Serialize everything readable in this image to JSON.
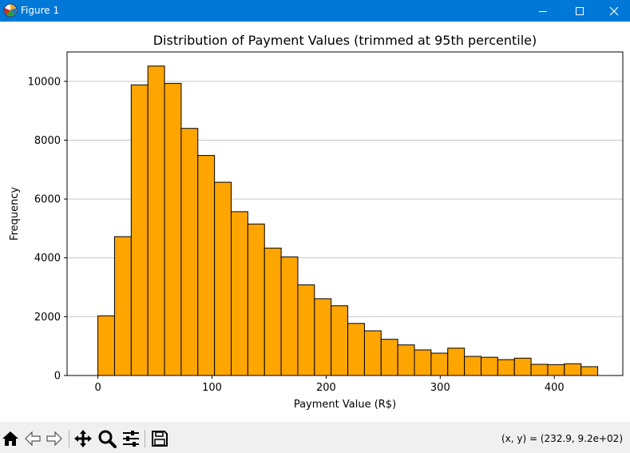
{
  "window": {
    "title": "Figure 1",
    "icon": "matplotlib-logo-icon",
    "controls": [
      "minimize-icon",
      "maximize-icon",
      "close-icon"
    ]
  },
  "toolbar": {
    "tools": [
      "home-icon",
      "back-arrow-icon",
      "forward-arrow-icon",
      "pan-icon",
      "zoom-icon",
      "configure-subplots-icon",
      "save-icon"
    ],
    "coords_text": "(x, y) = (232.9, 9.2e+02)"
  },
  "colors": {
    "bar_fill": "#ffa500",
    "bar_edge": "#000000",
    "grid": "#c8c8c8",
    "titlebar": "#0078d7"
  },
  "chart_data": {
    "type": "bar",
    "title": "Distribution of Payment Values (trimmed at 95th percentile)",
    "xlabel": "Payment Value (R$)",
    "ylabel": "Frequency",
    "xlim": [
      -27,
      460
    ],
    "ylim": [
      0,
      11000
    ],
    "xticks": [
      0,
      100,
      200,
      300,
      400
    ],
    "yticks": [
      0,
      2000,
      4000,
      6000,
      8000,
      10000
    ],
    "grid": "y-axis",
    "bin_edges": [
      0,
      14.6,
      29.2,
      43.8,
      58.4,
      73.0,
      87.6,
      102.2,
      116.8,
      131.4,
      146.0,
      160.6,
      175.2,
      189.8,
      204.4,
      219.0,
      233.6,
      248.2,
      262.8,
      277.4,
      292.0,
      306.6,
      321.2,
      335.8,
      350.4,
      365.0,
      379.6,
      394.2,
      408.8,
      423.4,
      438.0
    ],
    "values": [
      2030,
      4720,
      9880,
      10520,
      9930,
      8400,
      7480,
      6570,
      5570,
      5150,
      4330,
      4030,
      3080,
      2610,
      2370,
      1770,
      1520,
      1230,
      1040,
      870,
      760,
      930,
      650,
      620,
      540,
      590,
      380,
      370,
      400,
      300
    ]
  }
}
